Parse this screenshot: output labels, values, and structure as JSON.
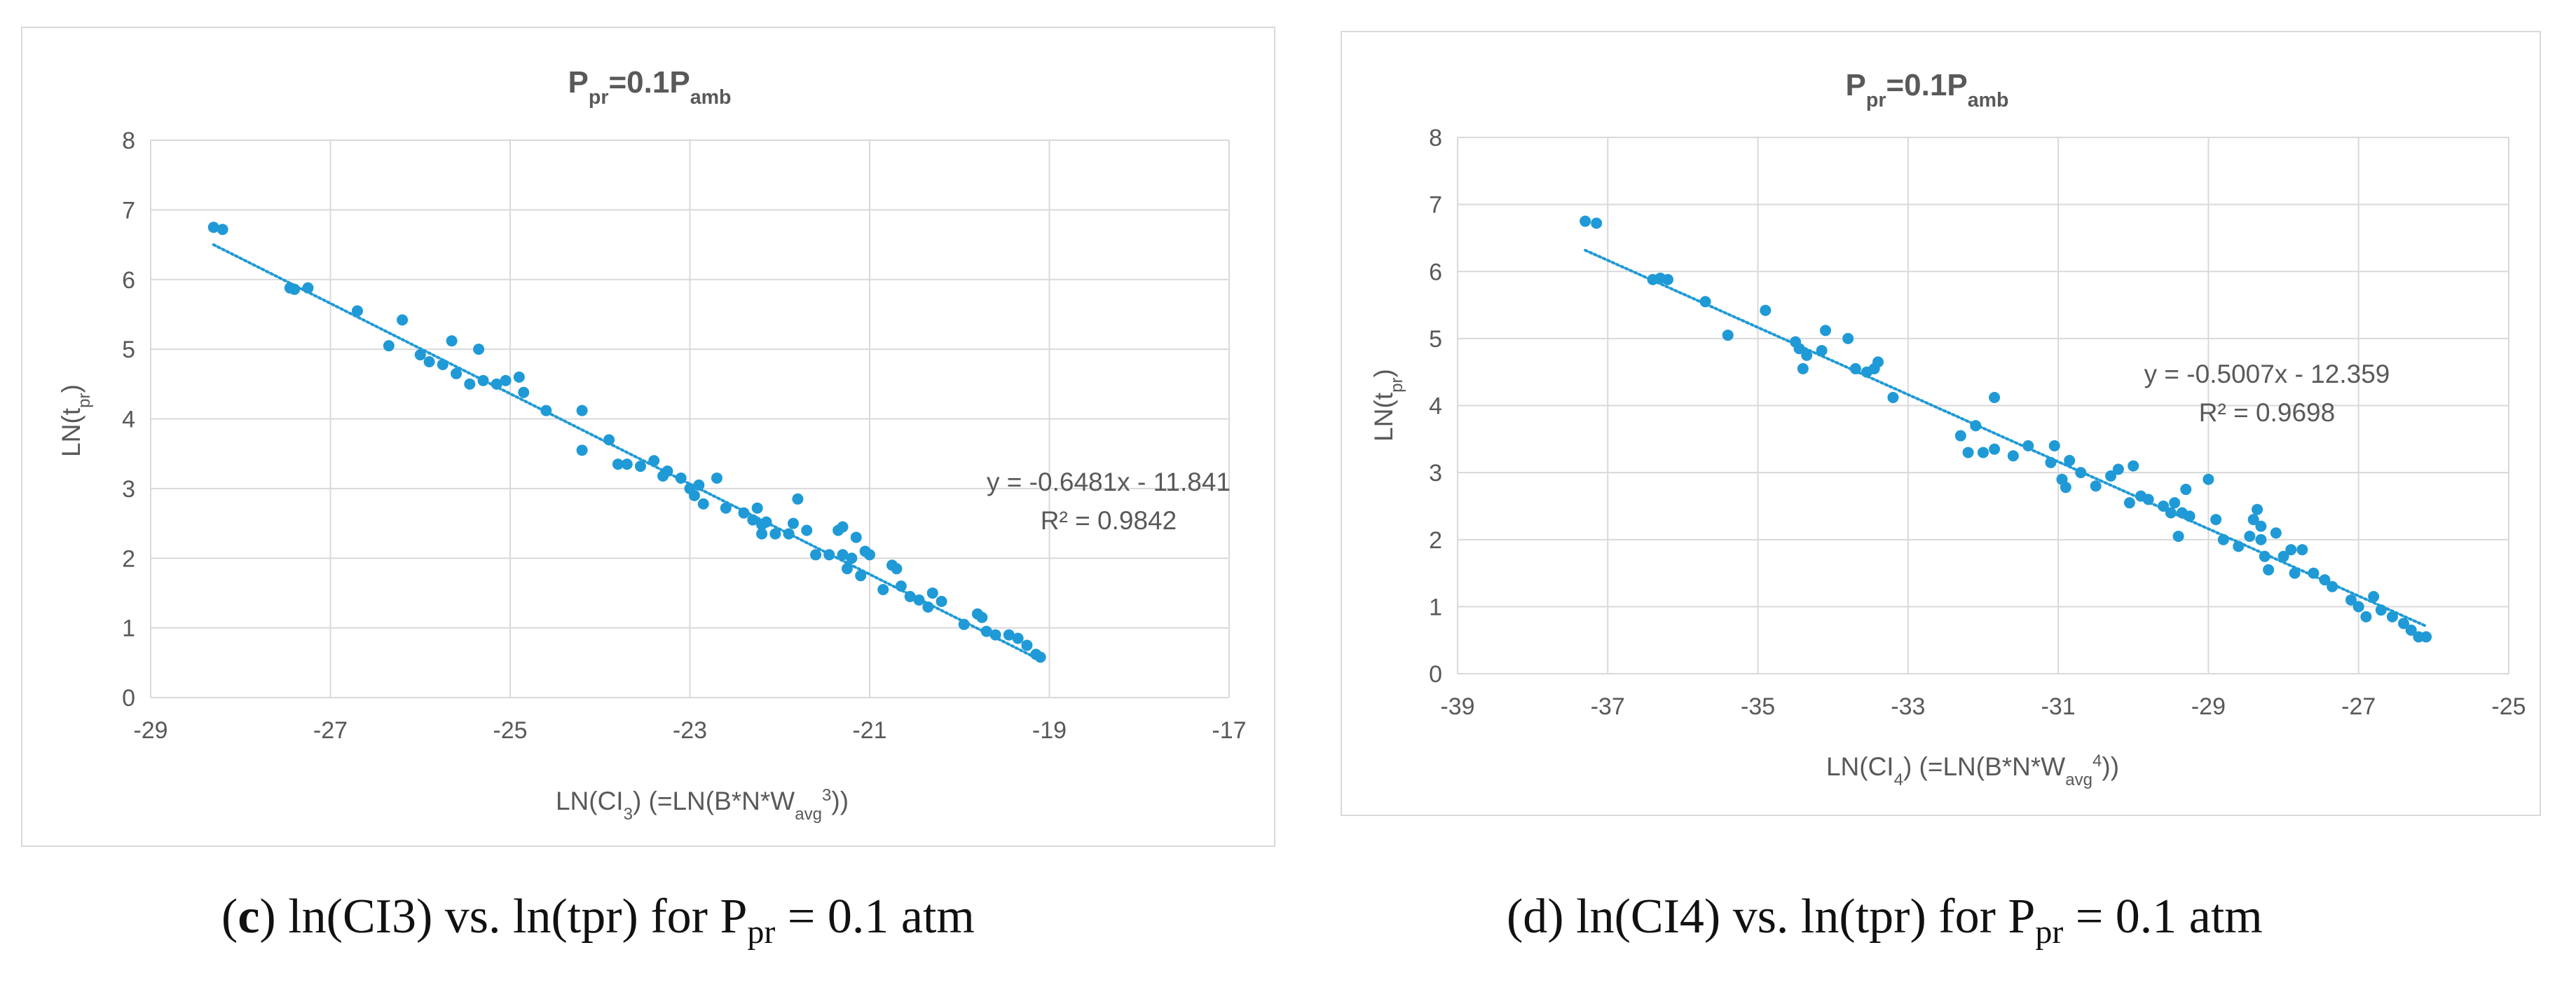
{
  "colors": {
    "marker": "#1f9ad6",
    "trend": "#1f9ad6",
    "grid": "#d9d9d9",
    "text": "#595959",
    "title": "#595959"
  },
  "captions": {
    "c": {
      "letter": "c",
      "text_pre": " ln(CI3) vs. ln(tpr) for P",
      "sub": "pr",
      "text_post": " = 0.1 atm"
    },
    "d": {
      "letter": "(d)",
      "text_pre": " ln(CI4) vs. ln(tpr) for P",
      "sub": "pr",
      "text_post": " = 0.1 atm"
    }
  },
  "chart_data": [
    {
      "type": "scatter",
      "title": {
        "base": "P",
        "sub": "pr",
        "mid": "=0.1P",
        "sub2": "amb"
      },
      "title_text": "Ppr=0.1Pamb",
      "xlabel": {
        "pre": "LN(CI",
        "sub": "3",
        "mid": ") (=LN(B*N*W",
        "sub2": "avg",
        "sup": "3",
        "post": "))"
      },
      "xlabel_text": "LN(CI3) (=LN(B*N*Wavg3))",
      "ylabel": {
        "pre": "LN(t",
        "sub": "pr",
        "post": ")"
      },
      "ylabel_text": "LN(tpr)",
      "xlim": [
        -29,
        -17
      ],
      "ylim": [
        0,
        8
      ],
      "xticks": [
        -29,
        -27,
        -25,
        -23,
        -21,
        -19,
        -17
      ],
      "yticks": [
        0,
        1,
        2,
        3,
        4,
        5,
        6,
        7,
        8
      ],
      "xtick_labels": [
        "-29",
        "-27",
        "-25",
        "-23",
        "-21",
        "-19",
        "-17"
      ],
      "ytick_labels": [
        "0",
        "1",
        "2",
        "3",
        "4",
        "5",
        "6",
        "7",
        "8"
      ],
      "grid": true,
      "trendline": {
        "slope": -0.6481,
        "intercept": -11.841,
        "x_range": [
          -28.3,
          -19.2
        ],
        "equation": "y = -0.6481x - 11.841",
        "r2": "R² = 0.9842"
      },
      "points": [
        [
          -28.3,
          6.75
        ],
        [
          -28.2,
          6.72
        ],
        [
          -27.45,
          5.88
        ],
        [
          -27.4,
          5.86
        ],
        [
          -27.25,
          5.88
        ],
        [
          -26.7,
          5.55
        ],
        [
          -26.35,
          5.05
        ],
        [
          -26.2,
          5.42
        ],
        [
          -26.0,
          4.92
        ],
        [
          -25.9,
          4.82
        ],
        [
          -25.75,
          4.78
        ],
        [
          -25.6,
          4.65
        ],
        [
          -25.65,
          5.12
        ],
        [
          -25.45,
          4.5
        ],
        [
          -25.35,
          5.0
        ],
        [
          -25.3,
          4.55
        ],
        [
          -25.15,
          4.5
        ],
        [
          -25.05,
          4.55
        ],
        [
          -24.9,
          4.6
        ],
        [
          -24.85,
          4.38
        ],
        [
          -24.6,
          4.12
        ],
        [
          -24.2,
          4.12
        ],
        [
          -24.2,
          3.55
        ],
        [
          -23.9,
          3.7
        ],
        [
          -23.8,
          3.35
        ],
        [
          -23.7,
          3.35
        ],
        [
          -23.55,
          3.32
        ],
        [
          -23.4,
          3.4
        ],
        [
          -23.25,
          3.25
        ],
        [
          -23.1,
          3.15
        ],
        [
          -22.9,
          3.05
        ],
        [
          -22.7,
          3.15
        ],
        [
          -23.3,
          3.18
        ],
        [
          -23.0,
          3.0
        ],
        [
          -22.95,
          2.9
        ],
        [
          -22.85,
          2.78
        ],
        [
          -22.6,
          2.72
        ],
        [
          -22.4,
          2.65
        ],
        [
          -22.3,
          2.55
        ],
        [
          -22.25,
          2.72
        ],
        [
          -22.2,
          2.48
        ],
        [
          -22.2,
          2.35
        ],
        [
          -22.15,
          2.52
        ],
        [
          -22.05,
          2.35
        ],
        [
          -21.9,
          2.35
        ],
        [
          -21.85,
          2.5
        ],
        [
          -21.8,
          2.85
        ],
        [
          -21.7,
          2.4
        ],
        [
          -21.6,
          2.05
        ],
        [
          -21.45,
          2.05
        ],
        [
          -21.35,
          2.4
        ],
        [
          -21.3,
          2.45
        ],
        [
          -21.3,
          2.05
        ],
        [
          -21.25,
          1.85
        ],
        [
          -21.2,
          2.0
        ],
        [
          -21.15,
          2.3
        ],
        [
          -21.1,
          1.75
        ],
        [
          -21.05,
          2.1
        ],
        [
          -21.0,
          2.05
        ],
        [
          -20.85,
          1.55
        ],
        [
          -20.75,
          1.9
        ],
        [
          -20.7,
          1.85
        ],
        [
          -20.65,
          1.6
        ],
        [
          -20.55,
          1.45
        ],
        [
          -20.45,
          1.4
        ],
        [
          -20.35,
          1.3
        ],
        [
          -20.3,
          1.5
        ],
        [
          -20.2,
          1.38
        ],
        [
          -19.95,
          1.05
        ],
        [
          -19.8,
          1.2
        ],
        [
          -19.75,
          1.15
        ],
        [
          -19.7,
          0.95
        ],
        [
          -19.6,
          0.9
        ],
        [
          -19.45,
          0.9
        ],
        [
          -19.35,
          0.85
        ],
        [
          -19.25,
          0.75
        ],
        [
          -19.15,
          0.62
        ],
        [
          -19.1,
          0.58
        ]
      ]
    },
    {
      "type": "scatter",
      "title": {
        "base": "P",
        "sub": "pr",
        "mid": "=0.1P",
        "sub2": "amb"
      },
      "title_text": "Ppr=0.1Pamb",
      "xlabel": {
        "pre": "LN(CI",
        "sub": "4",
        "mid": ") (=LN(B*N*W",
        "sub2": "avg",
        "sup": "4",
        "post": "))"
      },
      "xlabel_text": "LN(CI4) (=LN(B*N*Wavg4))",
      "ylabel": {
        "pre": "LN(t",
        "sub": "pr",
        "post": ")"
      },
      "ylabel_text": "LN(tpr)",
      "xlim": [
        -39,
        -25
      ],
      "ylim": [
        0,
        8
      ],
      "xticks": [
        -39,
        -37,
        -35,
        -33,
        -31,
        -29,
        -27,
        -25
      ],
      "yticks": [
        0,
        1,
        2,
        3,
        4,
        5,
        6,
        7,
        8
      ],
      "xtick_labels": [
        "-39",
        "-37",
        "-35",
        "-33",
        "-31",
        "-29",
        "-27",
        "-25"
      ],
      "ytick_labels": [
        "0",
        "1",
        "2",
        "3",
        "4",
        "5",
        "6",
        "7",
        "8"
      ],
      "grid": true,
      "trendline": {
        "slope": -0.5007,
        "intercept": -12.359,
        "x_range": [
          -37.3,
          -26.1
        ],
        "equation": "y = -0.5007x - 12.359",
        "r2": "R² = 0.9698"
      },
      "points": [
        [
          -37.3,
          6.75
        ],
        [
          -37.15,
          6.72
        ],
        [
          -36.4,
          5.88
        ],
        [
          -36.3,
          5.9
        ],
        [
          -36.2,
          5.88
        ],
        [
          -35.7,
          5.55
        ],
        [
          -35.4,
          5.05
        ],
        [
          -34.9,
          5.42
        ],
        [
          -34.5,
          4.95
        ],
        [
          -34.45,
          4.85
        ],
        [
          -34.4,
          4.55
        ],
        [
          -34.35,
          4.75
        ],
        [
          -34.15,
          4.82
        ],
        [
          -34.1,
          5.12
        ],
        [
          -33.8,
          5.0
        ],
        [
          -33.7,
          4.55
        ],
        [
          -33.55,
          4.5
        ],
        [
          -33.45,
          4.55
        ],
        [
          -33.4,
          4.65
        ],
        [
          -33.2,
          4.12
        ],
        [
          -32.3,
          3.55
        ],
        [
          -32.1,
          3.7
        ],
        [
          -31.85,
          4.12
        ],
        [
          -32.2,
          3.3
        ],
        [
          -32.0,
          3.3
        ],
        [
          -31.85,
          3.35
        ],
        [
          -31.6,
          3.25
        ],
        [
          -31.4,
          3.4
        ],
        [
          -31.1,
          3.15
        ],
        [
          -31.05,
          3.4
        ],
        [
          -30.95,
          2.9
        ],
        [
          -30.9,
          2.78
        ],
        [
          -30.85,
          3.18
        ],
        [
          -30.7,
          3.0
        ],
        [
          -30.5,
          2.8
        ],
        [
          -30.3,
          2.95
        ],
        [
          -30.2,
          3.05
        ],
        [
          -30.05,
          2.55
        ],
        [
          -29.9,
          2.65
        ],
        [
          -30.0,
          3.1
        ],
        [
          -29.8,
          2.6
        ],
        [
          -29.6,
          2.5
        ],
        [
          -29.5,
          2.4
        ],
        [
          -29.45,
          2.55
        ],
        [
          -29.4,
          2.05
        ],
        [
          -29.35,
          2.4
        ],
        [
          -29.3,
          2.75
        ],
        [
          -29.25,
          2.35
        ],
        [
          -29.0,
          2.9
        ],
        [
          -28.9,
          2.3
        ],
        [
          -28.8,
          2.0
        ],
        [
          -28.6,
          1.9
        ],
        [
          -28.45,
          2.05
        ],
        [
          -28.4,
          2.3
        ],
        [
          -28.35,
          2.45
        ],
        [
          -28.3,
          2.2
        ],
        [
          -28.3,
          2.0
        ],
        [
          -28.25,
          1.75
        ],
        [
          -28.2,
          1.55
        ],
        [
          -28.1,
          2.1
        ],
        [
          -28.0,
          1.75
        ],
        [
          -27.9,
          1.85
        ],
        [
          -27.85,
          1.5
        ],
        [
          -27.75,
          1.85
        ],
        [
          -27.6,
          1.5
        ],
        [
          -27.45,
          1.4
        ],
        [
          -27.35,
          1.3
        ],
        [
          -27.1,
          1.1
        ],
        [
          -27.0,
          1.0
        ],
        [
          -26.9,
          0.85
        ],
        [
          -26.8,
          1.15
        ],
        [
          -26.7,
          0.95
        ],
        [
          -26.55,
          0.85
        ],
        [
          -26.4,
          0.75
        ],
        [
          -26.3,
          0.65
        ],
        [
          -26.2,
          0.55
        ],
        [
          -26.1,
          0.55
        ]
      ]
    }
  ]
}
